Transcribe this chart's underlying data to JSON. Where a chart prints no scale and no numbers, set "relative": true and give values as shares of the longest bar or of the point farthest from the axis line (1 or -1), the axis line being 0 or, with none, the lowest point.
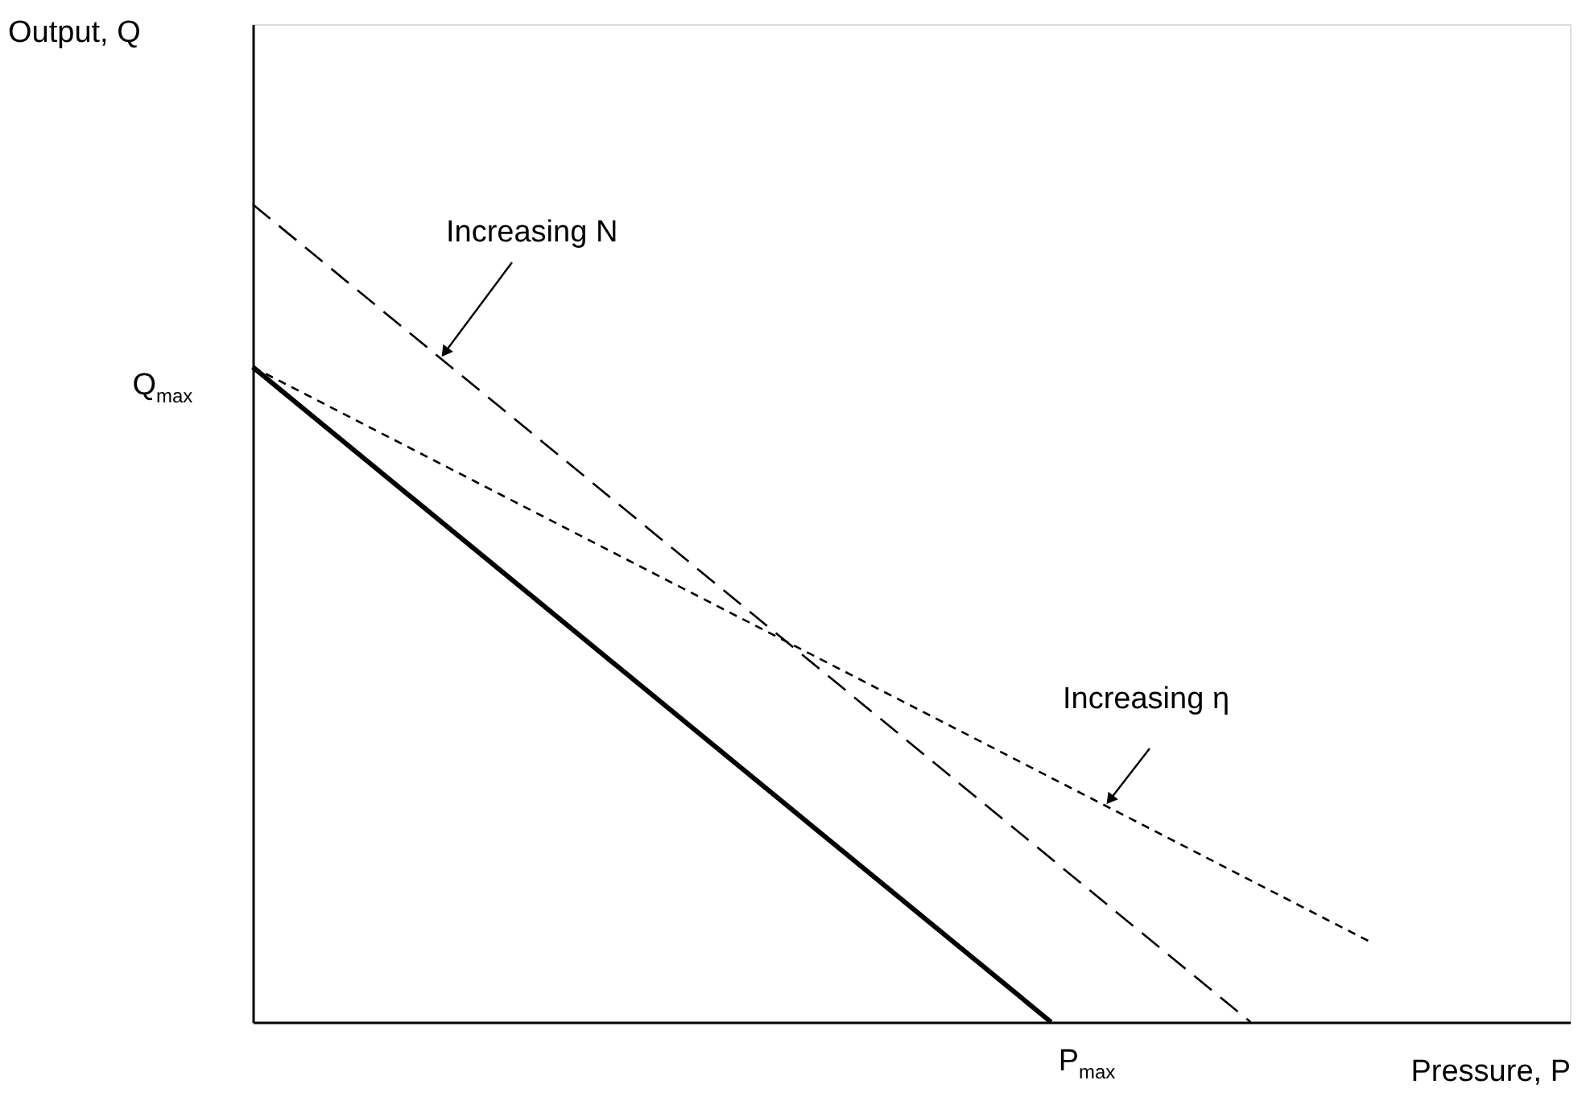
{
  "chart_data": {
    "type": "line",
    "relative": true,
    "xlabel": "Pressure, P",
    "tick_labels": false,
    "grid": false,
    "categories": [
      null,
      null,
      null,
      null,
      null,
      null,
      null,
      null,
      null,
      null,
      null,
      null,
      null,
      null,
      null,
      null,
      null,
      null,
      null,
      null,
      null,
      null,
      null,
      null,
      null,
      null,
      null,
      null,
      null,
      null,
      null,
      null,
      null,
      null
    ],
    "series": [
      {
        "color": "#000000",
        "line_style": "solid",
        "values": [
          0.801,
          null,
          null,
          null,
          null,
          null,
          null,
          null,
          null,
          null,
          null,
          null,
          null,
          null,
          null,
          null,
          null,
          null,
          null,
          null,
          0,
          null,
          null,
          null,
          null,
          null,
          null,
          null,
          null,
          null,
          null,
          null,
          null,
          null
        ]
      },
      {
        "color": "#000000",
        "line_style": "dashed",
        "values": [
          1,
          null,
          null,
          null,
          null,
          null,
          null,
          null,
          null,
          null,
          null,
          null,
          null,
          null,
          null,
          null,
          null,
          null,
          null,
          null,
          null,
          null,
          null,
          null,
          null,
          0,
          null,
          null,
          null,
          null,
          null,
          null,
          null,
          null
        ]
      },
      {
        "color": "#000000",
        "line_style": "dotted",
        "values": [
          0.801,
          null,
          null,
          null,
          null,
          null,
          null,
          null,
          null,
          null,
          null,
          null,
          null,
          null,
          null,
          null,
          null,
          null,
          null,
          null,
          null,
          null,
          null,
          null,
          null,
          null,
          null,
          null,
          0.098,
          null,
          null,
          null,
          null,
          null
        ]
      }
    ],
    "annotations": [
      "Q$_{max}$",
      "P$_{max}$",
      "Increasing N",
      "Increasing η",
      "Output, Q"
    ]
  }
}
